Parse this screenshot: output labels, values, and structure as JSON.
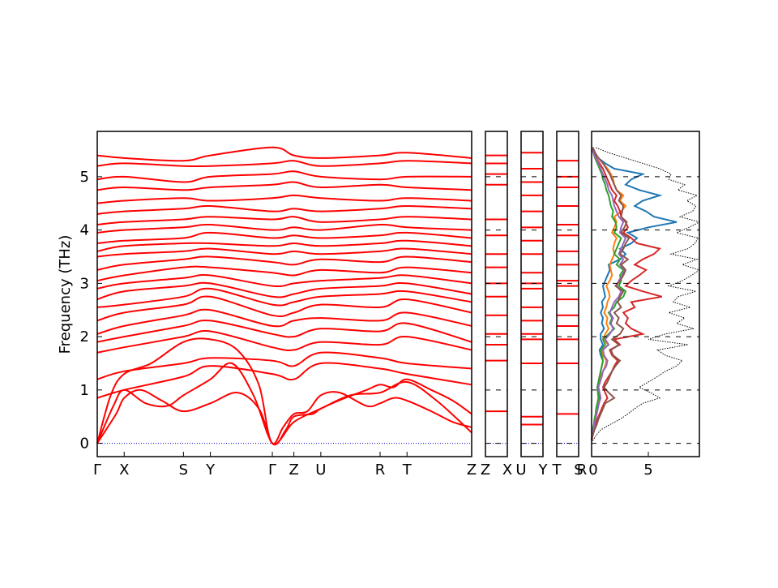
{
  "chart_data": {
    "type": "line",
    "ylabel": "Frequency (THz)",
    "ylim": [
      -0.25,
      5.85
    ],
    "yticks": [
      0,
      1,
      2,
      3,
      4,
      5
    ],
    "panels": [
      {
        "id": "main",
        "ticks": [
          {
            "label": "Γ",
            "x": 0
          },
          {
            "label": "X",
            "x": 0.5
          },
          {
            "label": "S",
            "x": 1.6
          },
          {
            "label": "Y",
            "x": 2.1
          },
          {
            "label": "Γ",
            "x": 3.25
          },
          {
            "label": "Z",
            "x": 3.65
          },
          {
            "label": "U",
            "x": 4.15
          },
          {
            "label": "R",
            "x": 5.25
          },
          {
            "label": "T",
            "x": 5.75
          },
          {
            "label": "Z",
            "x": 6.95
          }
        ],
        "xrange": [
          0,
          6.95
        ],
        "acoustic_series": [
          {
            "x": [
              0,
              0.35,
              0.5,
              0.8,
              1.2,
              1.6,
              2.1,
              2.6,
              3.0,
              3.25,
              3.45,
              3.65,
              3.9,
              4.15,
              4.5,
              5.0,
              5.25,
              5.5,
              5.75,
              6.2,
              6.6,
              6.95
            ],
            "y": [
              0,
              0.55,
              0.85,
              1.0,
              0.8,
              0.6,
              0.75,
              0.95,
              0.65,
              0.0,
              0.3,
              0.55,
              0.6,
              0.9,
              0.95,
              0.7,
              0.75,
              0.85,
              0.8,
              0.6,
              0.4,
              0.3
            ]
          },
          {
            "x": [
              0,
              0.3,
              0.5,
              0.9,
              1.3,
              1.6,
              2.1,
              2.5,
              2.9,
              3.25,
              3.5,
              3.65,
              4.0,
              4.15,
              4.6,
              5.0,
              5.25,
              5.5,
              5.75,
              6.2,
              6.6,
              6.95
            ],
            "y": [
              0,
              0.7,
              1.0,
              0.75,
              0.7,
              0.9,
              1.2,
              1.5,
              0.9,
              0.0,
              0.25,
              0.5,
              0.55,
              0.65,
              0.85,
              1.0,
              1.1,
              1.05,
              1.2,
              1.0,
              0.8,
              0.55
            ]
          },
          {
            "x": [
              0,
              0.25,
              0.5,
              1.0,
              1.6,
              2.1,
              2.6,
              3.0,
              3.25,
              3.65,
              4.15,
              4.7,
              5.25,
              5.75,
              6.3,
              6.95
            ],
            "y": [
              0,
              0.9,
              1.3,
              1.5,
              1.9,
              1.95,
              1.75,
              1.1,
              0.0,
              0.4,
              0.65,
              0.9,
              0.95,
              1.15,
              0.8,
              0.2
            ]
          }
        ],
        "optical_branches": [
          [
            0.85,
            1.0,
            1.25,
            1.45,
            1.3,
            1.2,
            1.5,
            1.4,
            1.3,
            1.1
          ],
          [
            1.2,
            1.35,
            1.5,
            1.6,
            1.55,
            1.45,
            1.7,
            1.6,
            1.5,
            1.4
          ],
          [
            1.7,
            1.8,
            2.0,
            2.1,
            1.8,
            1.75,
            1.9,
            1.85,
            2.0,
            1.75
          ],
          [
            1.9,
            2.0,
            2.2,
            2.3,
            2.05,
            2.0,
            2.15,
            2.1,
            2.25,
            1.9
          ],
          [
            2.05,
            2.2,
            2.4,
            2.5,
            2.2,
            2.3,
            2.35,
            2.3,
            2.45,
            2.2
          ],
          [
            2.3,
            2.45,
            2.6,
            2.75,
            2.4,
            2.45,
            2.6,
            2.55,
            2.7,
            2.45
          ],
          [
            2.55,
            2.6,
            2.75,
            2.9,
            2.6,
            2.65,
            2.75,
            2.8,
            2.85,
            2.65
          ],
          [
            2.7,
            2.85,
            2.95,
            3.0,
            2.75,
            2.8,
            2.9,
            2.95,
            3.0,
            2.8
          ],
          [
            2.9,
            3.0,
            3.1,
            3.15,
            2.95,
            3.0,
            3.05,
            3.1,
            3.15,
            3.0
          ],
          [
            3.05,
            3.15,
            3.3,
            3.3,
            3.2,
            3.15,
            3.25,
            3.2,
            3.3,
            3.2
          ],
          [
            3.25,
            3.35,
            3.45,
            3.5,
            3.4,
            3.35,
            3.45,
            3.4,
            3.5,
            3.4
          ],
          [
            3.5,
            3.55,
            3.6,
            3.65,
            3.55,
            3.6,
            3.55,
            3.6,
            3.65,
            3.55
          ],
          [
            3.6,
            3.7,
            3.75,
            3.75,
            3.7,
            3.75,
            3.7,
            3.75,
            3.8,
            3.7
          ],
          [
            3.75,
            3.8,
            3.85,
            3.95,
            3.85,
            3.9,
            3.85,
            3.9,
            3.95,
            3.85
          ],
          [
            3.95,
            4.0,
            4.05,
            4.1,
            4.0,
            4.05,
            4.0,
            4.1,
            4.05,
            4.0
          ],
          [
            4.1,
            4.15,
            4.2,
            4.25,
            4.2,
            4.25,
            4.15,
            4.2,
            4.25,
            4.2
          ],
          [
            4.3,
            4.35,
            4.4,
            4.45,
            4.35,
            4.4,
            4.35,
            4.4,
            4.45,
            4.4
          ],
          [
            4.5,
            4.55,
            4.6,
            4.55,
            4.6,
            4.65,
            4.6,
            4.55,
            4.6,
            4.55
          ],
          [
            4.75,
            4.8,
            4.75,
            4.8,
            4.85,
            4.9,
            4.8,
            4.85,
            4.8,
            4.75
          ],
          [
            4.95,
            5.0,
            4.9,
            5.0,
            5.05,
            5.1,
            5.0,
            4.95,
            5.0,
            5.0
          ],
          [
            5.2,
            5.25,
            5.2,
            5.2,
            5.25,
            5.3,
            5.2,
            5.25,
            5.3,
            5.25
          ],
          [
            5.4,
            5.35,
            5.3,
            5.4,
            5.55,
            5.4,
            5.35,
            5.4,
            5.45,
            5.35
          ]
        ]
      },
      {
        "id": "zx",
        "ticks": [
          {
            "label": "Z",
            "x": 0
          },
          {
            "label": "X",
            "x": 1
          }
        ],
        "levels": [
          0.6,
          1.55,
          1.85,
          2.05,
          2.4,
          2.75,
          3.0,
          3.3,
          3.55,
          3.9,
          4.2,
          4.85,
          5.05,
          5.25,
          5.4
        ]
      },
      {
        "id": "uy",
        "ticks": [
          {
            "label": "U",
            "x": 0
          },
          {
            "label": "Y",
            "x": 1
          }
        ],
        "levels": [
          0.35,
          0.5,
          1.5,
          1.95,
          2.05,
          2.3,
          2.55,
          2.9,
          3.0,
          3.2,
          3.55,
          3.8,
          4.05,
          4.35,
          4.65,
          4.9,
          5.15,
          5.45
        ]
      },
      {
        "id": "ts",
        "ticks": [
          {
            "label": "T",
            "x": 0
          },
          {
            "label": "S",
            "x": 1
          }
        ],
        "levels": [
          0.55,
          1.5,
          1.95,
          2.2,
          2.4,
          2.7,
          2.95,
          3.05,
          3.35,
          3.6,
          3.9,
          4.1,
          4.45,
          4.8,
          5.0,
          5.3
        ]
      },
      {
        "id": "dos",
        "ticks": [
          {
            "label": "R",
            "x": 0
          }
        ],
        "xticks": [
          0,
          5
        ],
        "xlim": [
          0,
          9.5
        ],
        "freq": [
          0.05,
          0.15,
          0.25,
          0.35,
          0.45,
          0.55,
          0.65,
          0.75,
          0.85,
          0.95,
          1.05,
          1.15,
          1.25,
          1.35,
          1.45,
          1.55,
          1.65,
          1.75,
          1.85,
          1.95,
          2.05,
          2.15,
          2.25,
          2.35,
          2.45,
          2.55,
          2.65,
          2.75,
          2.85,
          2.95,
          3.05,
          3.15,
          3.25,
          3.35,
          3.45,
          3.55,
          3.65,
          3.75,
          3.85,
          3.95,
          4.05,
          4.15,
          4.25,
          4.35,
          4.45,
          4.55,
          4.65,
          4.75,
          4.85,
          4.95,
          5.05,
          5.15,
          5.25,
          5.35,
          5.45,
          5.55
        ],
        "total": [
          0.1,
          0.4,
          0.8,
          1.6,
          2.5,
          3.2,
          3.8,
          4.5,
          6.0,
          5.2,
          4.2,
          5.0,
          5.8,
          6.5,
          7.5,
          8.0,
          6.5,
          5.8,
          8.5,
          5.0,
          6.5,
          9.0,
          7.5,
          8.2,
          6.8,
          8.7,
          7.2,
          7.6,
          9.2,
          6.8,
          8.0,
          8.8,
          9.5,
          8.0,
          9.3,
          7.0,
          8.5,
          9.1,
          9.4,
          7.5,
          8.6,
          9.5,
          7.8,
          8.9,
          9.2,
          8.4,
          9.3,
          7.6,
          8.2,
          6.8,
          7.0,
          6.0,
          4.5,
          3.0,
          1.5,
          0.3
        ],
        "series": [
          {
            "color": "#1f77b4",
            "values": [
              0.0,
              0.05,
              0.1,
              0.2,
              0.3,
              0.4,
              0.5,
              0.6,
              0.7,
              0.6,
              0.5,
              0.6,
              0.7,
              0.8,
              0.9,
              1.0,
              0.8,
              0.7,
              1.0,
              0.8,
              0.8,
              1.1,
              0.9,
              1.0,
              0.8,
              1.0,
              0.9,
              1.2,
              1.1,
              1.0,
              1.2,
              1.4,
              1.6,
              1.5,
              2.5,
              3.0,
              2.5,
              3.5,
              4.0,
              3.2,
              5.0,
              7.5,
              5.5,
              4.8,
              3.8,
              4.5,
              6.0,
              4.2,
              3.0,
              3.5,
              4.5,
              2.0,
              1.2,
              0.6,
              0.3,
              0.1
            ]
          },
          {
            "color": "#ff7f0e",
            "values": [
              0.0,
              0.05,
              0.1,
              0.2,
              0.3,
              0.4,
              0.5,
              0.6,
              0.8,
              0.7,
              0.6,
              0.7,
              0.8,
              1.0,
              1.2,
              1.3,
              1.0,
              0.9,
              1.5,
              1.0,
              1.2,
              1.5,
              1.3,
              1.4,
              1.1,
              1.3,
              1.4,
              1.6,
              1.5,
              1.3,
              1.6,
              1.8,
              1.7,
              1.6,
              1.8,
              2.0,
              1.9,
              2.0,
              2.2,
              1.8,
              2.0,
              2.2,
              2.0,
              2.6,
              3.0,
              2.5,
              2.8,
              2.2,
              2.0,
              1.9,
              1.7,
              1.4,
              1.0,
              0.6,
              0.3,
              0.1
            ]
          },
          {
            "color": "#2ca02c",
            "values": [
              0.0,
              0.05,
              0.1,
              0.2,
              0.25,
              0.35,
              0.4,
              0.5,
              0.6,
              0.55,
              0.5,
              0.6,
              0.7,
              0.8,
              0.9,
              1.0,
              0.9,
              0.8,
              1.2,
              1.0,
              1.5,
              2.0,
              1.6,
              1.8,
              1.5,
              2.0,
              2.2,
              2.8,
              3.0,
              2.4,
              2.6,
              2.5,
              2.8,
              2.2,
              2.5,
              2.0,
              2.2,
              2.4,
              2.6,
              2.0,
              2.2,
              2.1,
              1.8,
              1.9,
              1.7,
              1.6,
              1.5,
              1.3,
              1.2,
              1.0,
              0.9,
              0.7,
              0.5,
              0.3,
              0.15,
              0.05
            ]
          },
          {
            "color": "#d62728",
            "values": [
              0.0,
              0.1,
              0.2,
              0.35,
              0.5,
              0.7,
              0.9,
              1.1,
              1.4,
              1.2,
              1.0,
              1.2,
              1.5,
              1.8,
              2.0,
              2.3,
              1.8,
              1.6,
              2.5,
              2.0,
              4.5,
              3.5,
              3.0,
              3.2,
              2.8,
              3.8,
              3.5,
              6.2,
              4.5,
              3.0,
              3.5,
              4.2,
              4.8,
              3.8,
              4.5,
              5.5,
              6.0,
              4.0,
              3.5,
              2.8,
              3.2,
              3.0,
              2.6,
              2.5,
              2.3,
              2.0,
              2.2,
              1.8,
              1.6,
              1.4,
              1.2,
              1.0,
              0.7,
              0.4,
              0.2,
              0.05
            ]
          },
          {
            "color": "#9467bd",
            "values": [
              0.0,
              0.05,
              0.15,
              0.25,
              0.35,
              0.45,
              0.55,
              0.65,
              0.8,
              0.7,
              0.6,
              0.75,
              0.9,
              1.0,
              1.3,
              1.4,
              1.1,
              1.0,
              1.5,
              1.2,
              1.6,
              1.9,
              1.7,
              1.9,
              1.6,
              1.8,
              2.0,
              2.4,
              2.6,
              2.2,
              2.4,
              2.7,
              2.9,
              2.5,
              2.8,
              2.4,
              2.6,
              2.8,
              3.0,
              2.5,
              2.6,
              2.8,
              2.4,
              2.2,
              2.0,
              1.9,
              1.8,
              1.5,
              1.4,
              1.2,
              1.0,
              0.8,
              0.6,
              0.35,
              0.15,
              0.05
            ]
          },
          {
            "color": "#8c564b",
            "values": [
              0.0,
              0.1,
              0.25,
              0.45,
              0.6,
              0.8,
              1.0,
              1.2,
              2.0,
              1.5,
              1.1,
              1.4,
              1.6,
              1.8,
              2.1,
              2.5,
              1.9,
              1.7,
              2.4,
              1.8,
              2.5,
              2.8,
              2.2,
              2.4,
              2.0,
              2.6,
              2.3,
              2.5,
              2.8,
              2.1,
              2.5,
              2.8,
              3.0,
              2.6,
              3.2,
              2.5,
              2.8,
              3.0,
              3.3,
              2.6,
              2.9,
              3.1,
              2.6,
              2.7,
              2.8,
              2.4,
              2.6,
              2.2,
              2.0,
              1.8,
              1.6,
              1.3,
              1.0,
              0.6,
              0.3,
              0.1
            ]
          }
        ]
      }
    ]
  }
}
